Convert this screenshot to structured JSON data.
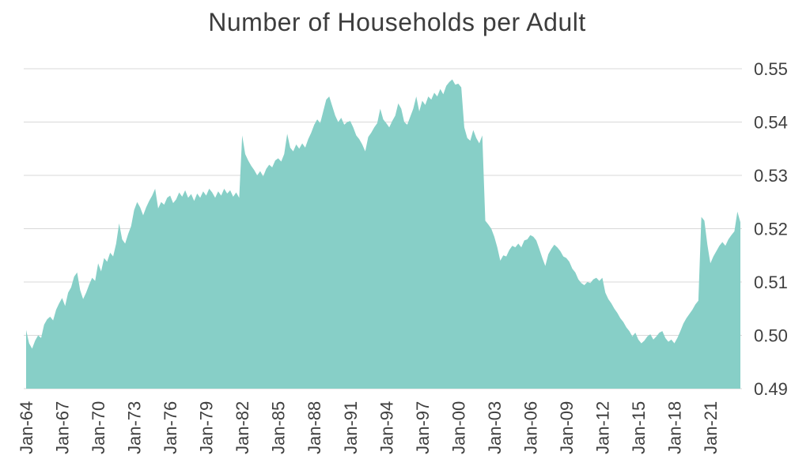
{
  "title": "Number of Households per Adult",
  "colors": {
    "background": "#ffffff",
    "area_fill": "#87cfc7",
    "gridline": "#d9d9d9",
    "axis_text": "#3f3f3f",
    "title_text": "#3d3d3d"
  },
  "chart_data": {
    "type": "area",
    "title": "Number of Households per Adult",
    "xlabel": "",
    "ylabel": "",
    "legend": "none",
    "grid": "horizontal",
    "ylim": [
      0.49,
      0.55
    ],
    "y_axis_side": "right",
    "y_tick_labels": [
      "0.55",
      "0.54",
      "0.53",
      "0.52",
      "0.51",
      "0.50",
      "0.49"
    ],
    "y_tick_values": [
      0.55,
      0.54,
      0.53,
      0.52,
      0.51,
      0.5,
      0.49
    ],
    "x_tick_labels": [
      "Jan-64",
      "Jan-67",
      "Jan-70",
      "Jan-73",
      "Jan-76",
      "Jan-79",
      "Jan-82",
      "Jan-85",
      "Jan-88",
      "Jan-91",
      "Jan-94",
      "Jan-97",
      "Jan-00",
      "Jan-03",
      "Jan-06",
      "Jan-09",
      "Jan-12",
      "Jan-15",
      "Jan-18",
      "Jan-21"
    ],
    "x_tick_years": [
      1964,
      1967,
      1970,
      1973,
      1976,
      1979,
      1982,
      1985,
      1988,
      1991,
      1994,
      1997,
      2000,
      2003,
      2006,
      2009,
      2012,
      2015,
      2018,
      2021
    ],
    "x_start_year": 1964.0,
    "x_end_year": 2023.5,
    "x_step_years": 0.25,
    "values": [
      0.501,
      0.4985,
      0.4975,
      0.499,
      0.5,
      0.4995,
      0.502,
      0.503,
      0.5035,
      0.5028,
      0.5048,
      0.506,
      0.507,
      0.5055,
      0.508,
      0.509,
      0.511,
      0.5118,
      0.5085,
      0.5068,
      0.508,
      0.5095,
      0.5108,
      0.5102,
      0.5135,
      0.512,
      0.5145,
      0.5138,
      0.5155,
      0.5148,
      0.5172,
      0.521,
      0.518,
      0.5172,
      0.519,
      0.5205,
      0.5235,
      0.525,
      0.524,
      0.5225,
      0.524,
      0.5252,
      0.5262,
      0.5275,
      0.5238,
      0.525,
      0.5245,
      0.5258,
      0.5262,
      0.5248,
      0.5255,
      0.5268,
      0.526,
      0.5272,
      0.5258,
      0.5265,
      0.5252,
      0.5266,
      0.5258,
      0.527,
      0.5262,
      0.5275,
      0.5268,
      0.5258,
      0.527,
      0.5262,
      0.5275,
      0.5266,
      0.5272,
      0.526,
      0.5268,
      0.5258,
      0.5375,
      0.534,
      0.5328,
      0.5318,
      0.531,
      0.53,
      0.5308,
      0.5298,
      0.5312,
      0.532,
      0.5315,
      0.5328,
      0.5332,
      0.5326,
      0.534,
      0.5378,
      0.5352,
      0.5345,
      0.5358,
      0.535,
      0.536,
      0.5352,
      0.5368,
      0.538,
      0.5395,
      0.5405,
      0.5398,
      0.542,
      0.5442,
      0.5448,
      0.543,
      0.5412,
      0.54,
      0.5408,
      0.5395,
      0.54,
      0.5402,
      0.539,
      0.5375,
      0.5368,
      0.5358,
      0.5345,
      0.5372,
      0.538,
      0.539,
      0.5398,
      0.5425,
      0.5405,
      0.5398,
      0.539,
      0.5402,
      0.5412,
      0.5435,
      0.5425,
      0.54,
      0.5395,
      0.541,
      0.5425,
      0.5448,
      0.542,
      0.544,
      0.5432,
      0.5448,
      0.5442,
      0.5455,
      0.5448,
      0.5462,
      0.5452,
      0.5468,
      0.5475,
      0.548,
      0.547,
      0.5472,
      0.5465,
      0.539,
      0.537,
      0.5365,
      0.5385,
      0.537,
      0.536,
      0.5375,
      0.5215,
      0.5208,
      0.52,
      0.5185,
      0.5165,
      0.514,
      0.515,
      0.5148,
      0.516,
      0.5168,
      0.5165,
      0.5172,
      0.5165,
      0.5178,
      0.518,
      0.5188,
      0.5185,
      0.5178,
      0.5162,
      0.5145,
      0.513,
      0.5152,
      0.5162,
      0.517,
      0.5165,
      0.5158,
      0.5148,
      0.5145,
      0.5138,
      0.5125,
      0.5118,
      0.5105,
      0.5098,
      0.5094,
      0.51,
      0.5098,
      0.5105,
      0.5108,
      0.5102,
      0.5108,
      0.508,
      0.5068,
      0.506,
      0.505,
      0.5042,
      0.5032,
      0.5025,
      0.5015,
      0.5008,
      0.4998,
      0.5005,
      0.4992,
      0.4985,
      0.499,
      0.4998,
      0.5002,
      0.4992,
      0.4998,
      0.5005,
      0.5008,
      0.4995,
      0.4988,
      0.4992,
      0.4985,
      0.4995,
      0.5008,
      0.5022,
      0.5032,
      0.504,
      0.5048,
      0.5058,
      0.5065,
      0.5222,
      0.5215,
      0.517,
      0.5135,
      0.5148,
      0.5158,
      0.5168,
      0.5175,
      0.5168,
      0.518,
      0.5188,
      0.5195,
      0.5232,
      0.5212
    ]
  }
}
